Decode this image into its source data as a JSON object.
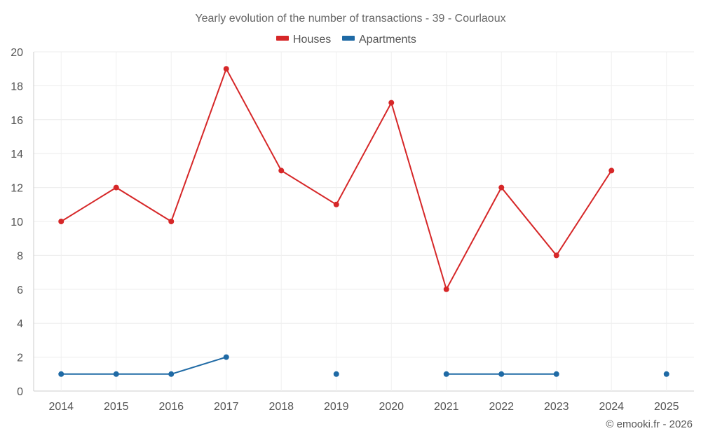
{
  "chart_data": {
    "type": "line",
    "title": "Yearly evolution of the number of transactions - 39 - Courlaoux",
    "x": [
      "2014",
      "2015",
      "2016",
      "2017",
      "2018",
      "2019",
      "2020",
      "2021",
      "2022",
      "2023",
      "2024",
      "2025"
    ],
    "series": [
      {
        "name": "Houses",
        "color": "#d62728",
        "values": [
          10,
          12,
          10,
          19,
          13,
          11,
          17,
          6,
          12,
          8,
          13,
          null
        ]
      },
      {
        "name": "Apartments",
        "color": "#1f6aa5",
        "values": [
          1,
          1,
          1,
          2,
          null,
          1,
          null,
          1,
          1,
          1,
          null,
          1
        ]
      }
    ],
    "ylim": [
      0,
      20
    ],
    "yticks": [
      0,
      2,
      4,
      6,
      8,
      10,
      12,
      14,
      16,
      18,
      20
    ],
    "grid": true,
    "legend_position": "top-center",
    "xlabel": "",
    "ylabel": ""
  },
  "credit": "© emooki.fr - 2026"
}
